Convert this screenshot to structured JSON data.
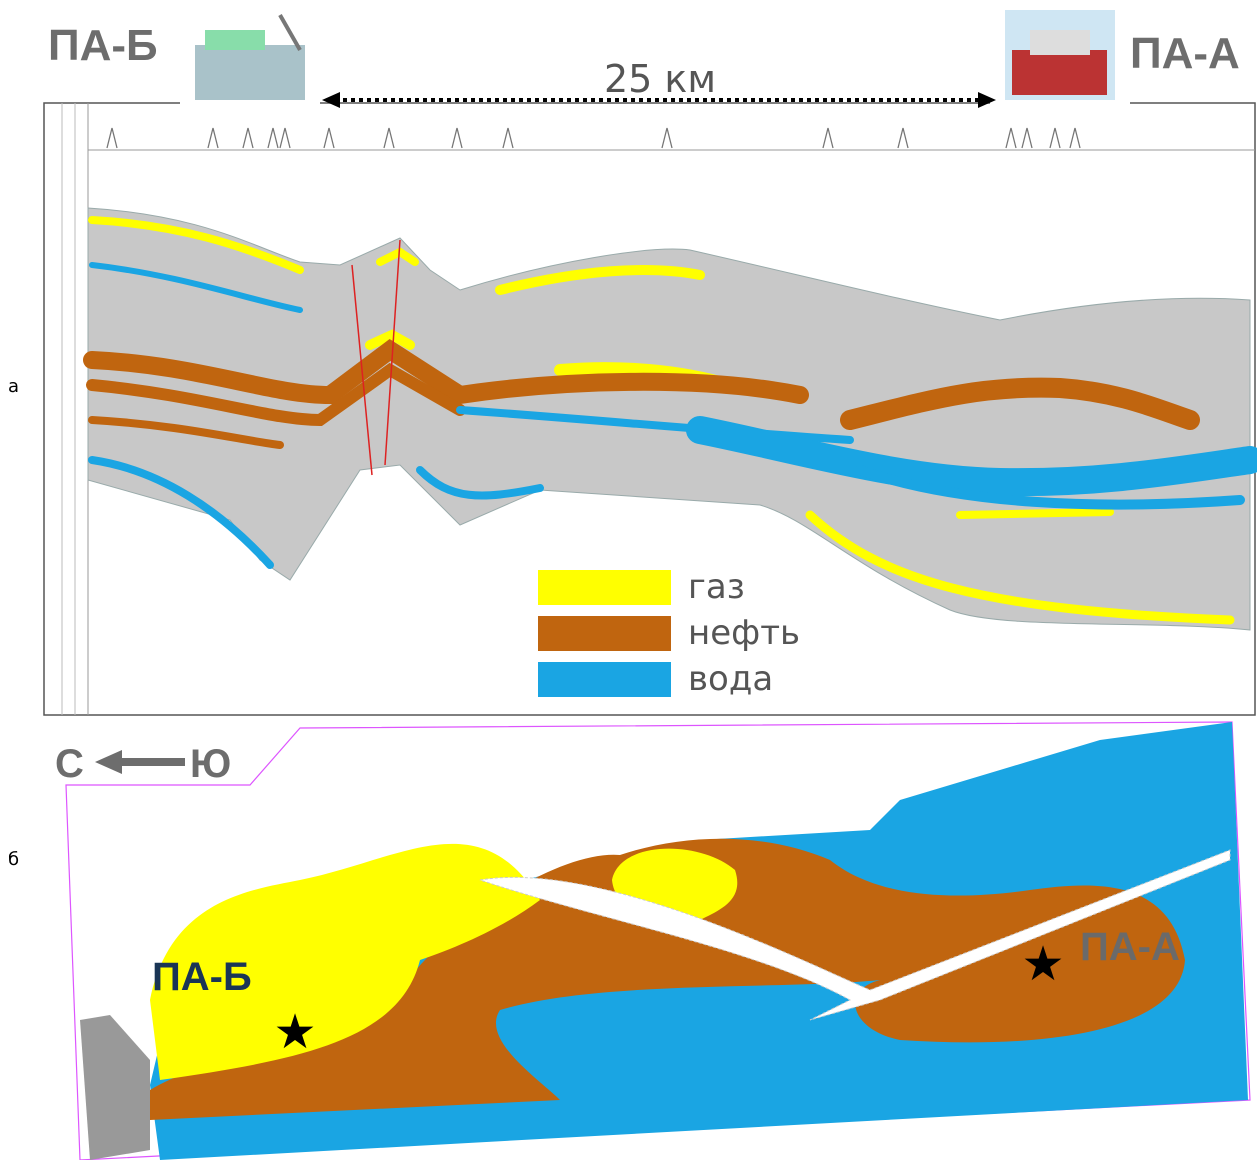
{
  "panel_a": {
    "label": "а",
    "left_platform": "ПА-Б",
    "right_platform": "ПА-А",
    "distance": "25 км",
    "legend": [
      {
        "label": "газ",
        "color": "#ffff00"
      },
      {
        "label": "нефть",
        "color": "#c0650f"
      },
      {
        "label": "вода",
        "color": "#1aa5e3"
      }
    ]
  },
  "panel_b": {
    "label": "б",
    "direction_north": "С",
    "direction_south": "Ю",
    "well_left": "ПА-Б",
    "well_right": "ПА-А"
  }
}
